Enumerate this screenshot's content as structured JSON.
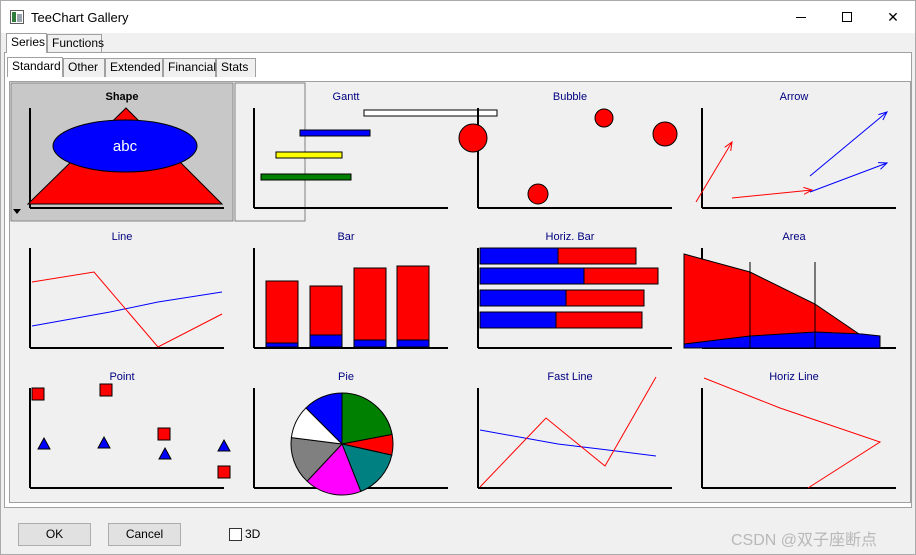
{
  "window": {
    "title": "TeeChart Gallery",
    "minimize": "min-icon",
    "maximize": "max-icon",
    "close_glyph": "✕"
  },
  "outer_tabs": [
    {
      "label": "Series",
      "active": true
    },
    {
      "label": "Functions",
      "active": false
    }
  ],
  "inner_tabs": [
    {
      "label": "Standard",
      "active": true
    },
    {
      "label": "Other",
      "active": false
    },
    {
      "label": "Extended",
      "active": false
    },
    {
      "label": "Financial",
      "active": false
    },
    {
      "label": "Stats",
      "active": false
    }
  ],
  "colors": {
    "red": "#ff0000",
    "blue": "#0000ff",
    "green": "#008000",
    "yellow": "#ffff00",
    "title": "#000080",
    "selected_bg": "#c8c8c8"
  },
  "gallery": [
    {
      "label": "Shape",
      "type": "shape",
      "selected": true,
      "text": "abc"
    },
    {
      "label": "Gantt",
      "type": "gantt",
      "hovered": true
    },
    {
      "label": "Bubble",
      "type": "bubble"
    },
    {
      "label": "Arrow",
      "type": "arrow"
    },
    {
      "label": "Line",
      "type": "line"
    },
    {
      "label": "Bar",
      "type": "bar"
    },
    {
      "label": "Horiz. Bar",
      "type": "hbar"
    },
    {
      "label": "Area",
      "type": "area"
    },
    {
      "label": "Point",
      "type": "point"
    },
    {
      "label": "Pie",
      "type": "pie"
    },
    {
      "label": "Fast Line",
      "type": "fastline"
    },
    {
      "label": "Horiz Line",
      "type": "horizline"
    }
  ],
  "buttons": {
    "ok": "OK",
    "cancel": "Cancel"
  },
  "checkbox_3d": {
    "label": "3D",
    "checked": false
  },
  "watermark": "CSDN @双子座断点"
}
